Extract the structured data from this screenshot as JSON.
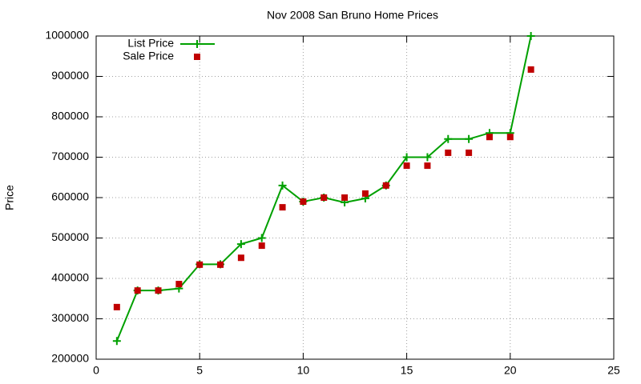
{
  "chart_data": {
    "type": "line",
    "title": "Nov 2008 San Bruno Home Prices",
    "y_label": "Price",
    "x": [
      1,
      2,
      3,
      4,
      5,
      6,
      7,
      8,
      9,
      10,
      11,
      12,
      13,
      14,
      15,
      16,
      17,
      18,
      19,
      20,
      21
    ],
    "series": [
      {
        "name": "List Price",
        "color": "#00a000",
        "mode": "lines+markers",
        "values": [
          245000,
          370000,
          370000,
          375000,
          435000,
          435000,
          485000,
          500000,
          630000,
          590000,
          600000,
          588000,
          598000,
          630000,
          700000,
          700000,
          745000,
          745000,
          760000,
          760000,
          1000000
        ]
      },
      {
        "name": "Sale Price",
        "color": "#c00000",
        "mode": "markers",
        "values": [
          329000,
          370000,
          370000,
          386000,
          434000,
          434000,
          451000,
          481000,
          576000,
          590000,
          600000,
          600000,
          610000,
          630000,
          679000,
          679000,
          711000,
          711000,
          750000,
          750000,
          917000
        ]
      }
    ],
    "xlim": [
      0,
      25
    ],
    "xticks": [
      0,
      5,
      10,
      15,
      20,
      25
    ],
    "ylim": [
      200000,
      1000000
    ],
    "yticks": [
      200000,
      300000,
      400000,
      500000,
      600000,
      700000,
      800000,
      900000,
      1000000
    ],
    "grid": true,
    "legend": "top-left"
  }
}
